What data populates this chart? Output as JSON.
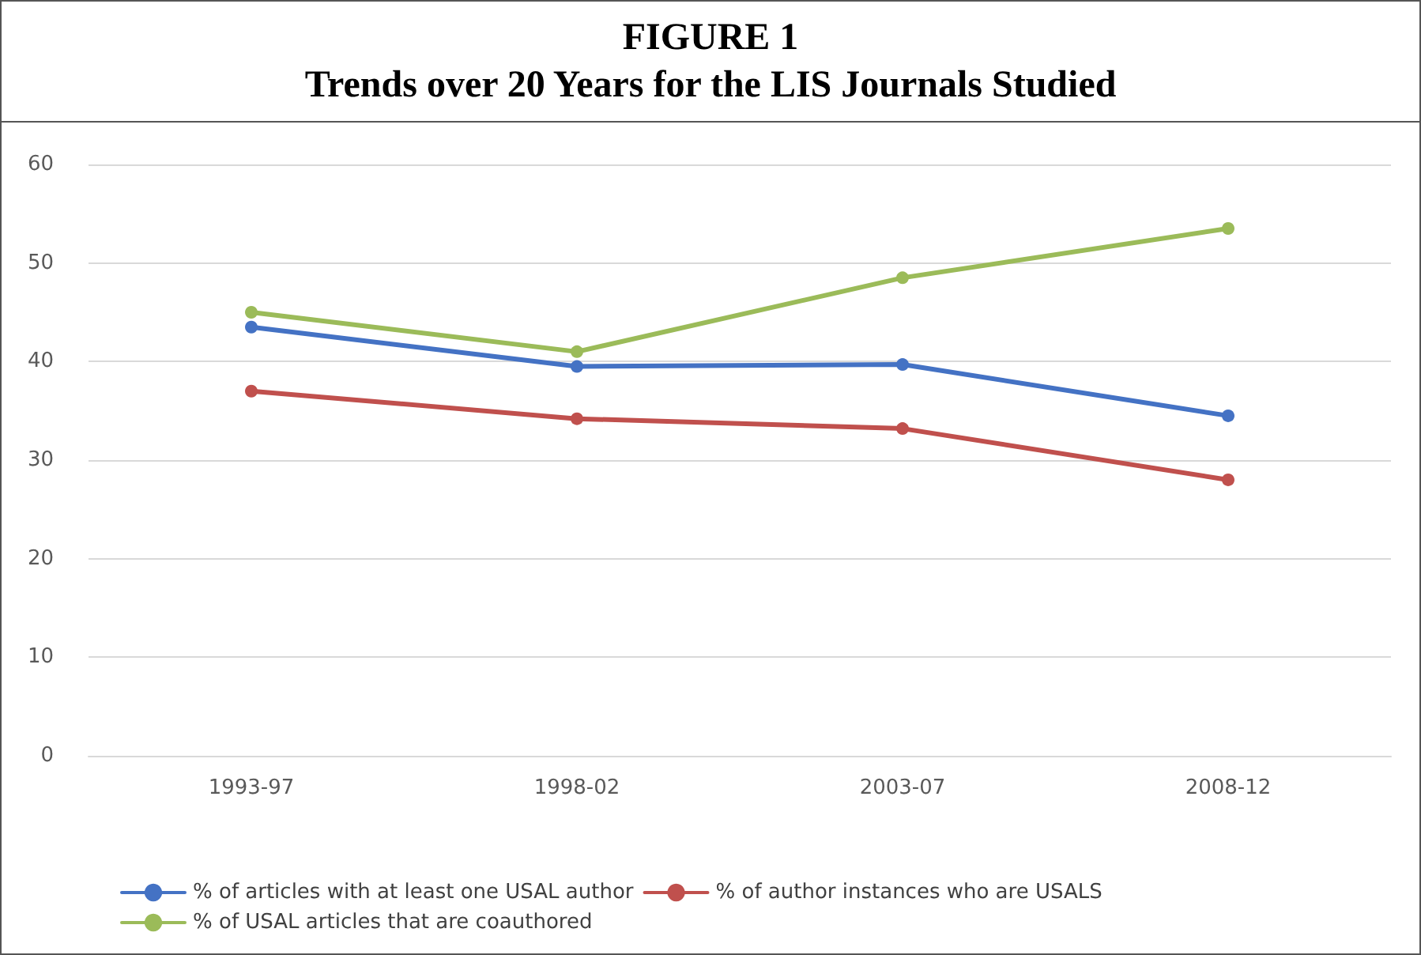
{
  "chart_data": {
    "type": "line",
    "title": "FIGURE 1",
    "subtitle": "Trends over 20 Years for the LIS Journals Studied",
    "categories": [
      "1993-97",
      "1998-02",
      "2003-07",
      "2008-12"
    ],
    "series": [
      {
        "name": "% of articles with at least one USAL author",
        "color": "#4472c4",
        "values": [
          43.5,
          39.5,
          39.7,
          34.5
        ]
      },
      {
        "name": "% of author instances who are USALS",
        "color": "#c0504d",
        "values": [
          37,
          34.2,
          33.2,
          28
        ]
      },
      {
        "name": "% of USAL articles that are coauthored",
        "color": "#9bbb59",
        "values": [
          45,
          41,
          48.5,
          53.5
        ]
      }
    ],
    "ylim": [
      0,
      60
    ],
    "yticks": [
      0,
      10,
      20,
      30,
      40,
      50,
      60
    ],
    "grid": "y",
    "legend": "bottom",
    "marker": "circle",
    "line_style": "solid"
  }
}
